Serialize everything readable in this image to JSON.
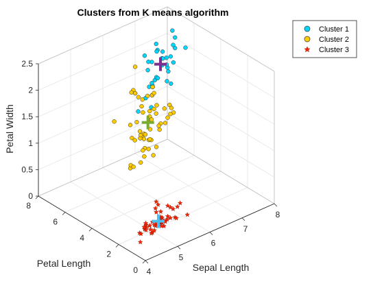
{
  "chart_data": {
    "type": "scatter3d",
    "title": "Clusters from K means algorithm",
    "xlabel": "Sepal Length",
    "ylabel": "Petal Length",
    "zlabel": "Petal Width",
    "xlim": [
      4,
      8
    ],
    "ylim": [
      0,
      8
    ],
    "zlim": [
      0,
      2.5
    ],
    "xticks": [
      "4",
      "5",
      "6",
      "7",
      "8"
    ],
    "yticks": [
      "0",
      "2",
      "4",
      "6",
      "8"
    ],
    "zticks": [
      "0",
      "0.5",
      "1",
      "1.5",
      "2",
      "2.5"
    ],
    "grid": true,
    "legend_position": "top-right",
    "series": [
      {
        "name": "Cluster 1",
        "color": "#00d8ff",
        "marker": "circle",
        "points": [
          [
            6.2,
            4.8,
            1.8
          ],
          [
            6.3,
            5.0,
            1.9
          ],
          [
            6.4,
            5.3,
            2.3
          ],
          [
            6.5,
            5.5,
            1.8
          ],
          [
            6.7,
            5.6,
            2.4
          ],
          [
            6.7,
            5.7,
            2.5
          ],
          [
            6.8,
            5.9,
            2.3
          ],
          [
            6.9,
            5.7,
            2.3
          ],
          [
            7.0,
            6.0,
            2.1
          ],
          [
            7.1,
            5.9,
            2.1
          ],
          [
            7.2,
            6.0,
            1.8
          ],
          [
            7.2,
            6.1,
            1.6
          ],
          [
            7.3,
            6.3,
            1.8
          ],
          [
            7.4,
            6.1,
            1.9
          ],
          [
            7.6,
            6.6,
            2.1
          ],
          [
            7.7,
            6.7,
            2.2
          ],
          [
            7.7,
            6.9,
            2.3
          ],
          [
            7.7,
            6.7,
            2.0
          ],
          [
            7.9,
            6.4,
            2.0
          ],
          [
            6.1,
            5.6,
            1.4
          ],
          [
            6.3,
            5.6,
            2.4
          ],
          [
            6.4,
            5.6,
            2.1
          ],
          [
            6.5,
            5.8,
            2.2
          ],
          [
            6.7,
            5.8,
            1.8
          ],
          [
            6.8,
            5.5,
            2.1
          ],
          [
            6.9,
            5.4,
            2.1
          ],
          [
            6.9,
            5.1,
            2.3
          ],
          [
            6.3,
            5.1,
            1.5
          ],
          [
            6.4,
            5.5,
            1.8
          ],
          [
            6.5,
            5.2,
            2.0
          ],
          [
            6.0,
            4.8,
            1.8
          ],
          [
            6.7,
            5.2,
            2.3
          ],
          [
            7.2,
            5.8,
            1.6
          ],
          [
            6.4,
            5.3,
            1.9
          ],
          [
            6.5,
            5.1,
            2.0
          ]
        ]
      },
      {
        "name": "Cluster 2",
        "color": "#ffcc00",
        "marker": "circle",
        "points": [
          [
            5.5,
            4.0,
            1.3
          ],
          [
            6.5,
            4.6,
            1.5
          ],
          [
            5.7,
            4.5,
            1.3
          ],
          [
            6.3,
            4.7,
            1.6
          ],
          [
            4.9,
            3.3,
            1.0
          ],
          [
            6.6,
            4.6,
            1.3
          ],
          [
            5.2,
            3.9,
            1.4
          ],
          [
            5.0,
            3.5,
            1.0
          ],
          [
            5.9,
            4.2,
            1.5
          ],
          [
            6.0,
            4.0,
            1.0
          ],
          [
            6.1,
            4.7,
            1.4
          ],
          [
            5.6,
            3.6,
            1.3
          ],
          [
            6.7,
            4.4,
            1.4
          ],
          [
            5.6,
            4.5,
            1.5
          ],
          [
            5.8,
            4.1,
            1.0
          ],
          [
            6.2,
            4.5,
            1.5
          ],
          [
            5.6,
            3.9,
            1.1
          ],
          [
            5.9,
            4.8,
            1.8
          ],
          [
            6.1,
            4.0,
            1.3
          ],
          [
            6.3,
            4.9,
            1.5
          ],
          [
            6.1,
            4.7,
            1.2
          ],
          [
            6.4,
            4.3,
            1.3
          ],
          [
            6.6,
            4.4,
            1.4
          ],
          [
            6.8,
            4.8,
            1.4
          ],
          [
            6.0,
            4.5,
            1.5
          ],
          [
            5.7,
            3.5,
            1.0
          ],
          [
            5.5,
            3.8,
            1.1
          ],
          [
            5.5,
            3.7,
            1.0
          ],
          [
            5.8,
            3.9,
            1.2
          ],
          [
            6.0,
            5.1,
            1.6
          ],
          [
            5.4,
            4.5,
            1.5
          ],
          [
            6.0,
            4.5,
            1.6
          ],
          [
            6.7,
            4.7,
            1.5
          ],
          [
            6.3,
            4.4,
            1.3
          ],
          [
            5.6,
            4.1,
            1.3
          ],
          [
            5.5,
            4.0,
            1.3
          ],
          [
            5.5,
            4.4,
            1.2
          ],
          [
            6.1,
            4.6,
            1.4
          ],
          [
            5.8,
            4.0,
            1.2
          ],
          [
            5.0,
            3.3,
            1.0
          ],
          [
            5.6,
            4.2,
            1.3
          ],
          [
            5.7,
            4.2,
            1.2
          ],
          [
            5.7,
            4.2,
            1.3
          ],
          [
            6.2,
            4.3,
            1.3
          ],
          [
            5.1,
            3.0,
            1.1
          ],
          [
            5.7,
            4.1,
            1.3
          ],
          [
            5.8,
            5.1,
            1.9
          ],
          [
            4.9,
            4.5,
            1.7
          ],
          [
            5.7,
            5.0,
            2.0
          ],
          [
            5.8,
            5.1,
            2.4
          ],
          [
            6.0,
            5.0,
            1.5
          ],
          [
            5.6,
            4.9,
            2.0
          ],
          [
            6.2,
            4.8,
            1.8
          ],
          [
            6.1,
            4.9,
            1.8
          ],
          [
            6.3,
            4.9,
            1.8
          ],
          [
            5.8,
            5.1,
            1.9
          ],
          [
            5.9,
            5.1,
            1.8
          ],
          [
            6.3,
            5.0,
            1.9
          ]
        ]
      },
      {
        "name": "Cluster 3",
        "color": "#ff2200",
        "marker": "star",
        "points": [
          [
            5.1,
            1.4,
            0.2
          ],
          [
            4.9,
            1.4,
            0.2
          ],
          [
            4.7,
            1.3,
            0.2
          ],
          [
            4.6,
            1.5,
            0.2
          ],
          [
            5.0,
            1.4,
            0.2
          ],
          [
            5.4,
            1.7,
            0.4
          ],
          [
            4.6,
            1.4,
            0.3
          ],
          [
            5.0,
            1.5,
            0.2
          ],
          [
            4.4,
            1.4,
            0.2
          ],
          [
            4.9,
            1.5,
            0.1
          ],
          [
            5.4,
            1.5,
            0.2
          ],
          [
            4.8,
            1.6,
            0.2
          ],
          [
            4.8,
            1.4,
            0.1
          ],
          [
            4.3,
            1.1,
            0.1
          ],
          [
            5.8,
            1.2,
            0.2
          ],
          [
            5.7,
            1.5,
            0.4
          ],
          [
            5.4,
            1.3,
            0.4
          ],
          [
            5.1,
            1.4,
            0.3
          ],
          [
            5.7,
            1.7,
            0.3
          ],
          [
            5.1,
            1.5,
            0.3
          ],
          [
            5.4,
            1.7,
            0.2
          ],
          [
            5.1,
            1.5,
            0.4
          ],
          [
            4.6,
            1.0,
            0.2
          ],
          [
            5.1,
            1.7,
            0.5
          ],
          [
            4.8,
            1.9,
            0.2
          ],
          [
            5.0,
            1.6,
            0.2
          ],
          [
            5.0,
            1.6,
            0.4
          ],
          [
            5.2,
            1.5,
            0.2
          ],
          [
            5.2,
            1.4,
            0.2
          ],
          [
            4.7,
            1.6,
            0.2
          ],
          [
            4.8,
            1.6,
            0.2
          ],
          [
            5.4,
            1.5,
            0.4
          ],
          [
            5.2,
            1.5,
            0.1
          ],
          [
            5.5,
            1.4,
            0.2
          ],
          [
            4.9,
            1.5,
            0.2
          ],
          [
            5.0,
            1.2,
            0.2
          ],
          [
            5.5,
            1.3,
            0.2
          ],
          [
            4.4,
            1.3,
            0.2
          ],
          [
            5.1,
            1.5,
            0.2
          ],
          [
            5.0,
            1.3,
            0.3
          ],
          [
            4.5,
            1.3,
            0.3
          ],
          [
            4.4,
            1.3,
            0.2
          ],
          [
            5.0,
            1.6,
            0.6
          ],
          [
            5.1,
            1.9,
            0.4
          ],
          [
            4.8,
            1.4,
            0.3
          ],
          [
            5.1,
            1.6,
            0.2
          ],
          [
            4.6,
            1.4,
            0.2
          ],
          [
            5.3,
            1.5,
            0.2
          ],
          [
            5.0,
            1.4,
            0.2
          ]
        ]
      }
    ],
    "centroids": [
      {
        "cluster": "Cluster 1",
        "color": "#7e2f8e",
        "point": [
          6.85,
          5.74,
          2.07
        ]
      },
      {
        "cluster": "Cluster 2",
        "color": "#77ac30",
        "point": [
          5.9,
          4.39,
          1.43
        ]
      },
      {
        "cluster": "Cluster 3",
        "color": "#4dbeee",
        "point": [
          5.01,
          1.46,
          0.25
        ]
      }
    ]
  }
}
